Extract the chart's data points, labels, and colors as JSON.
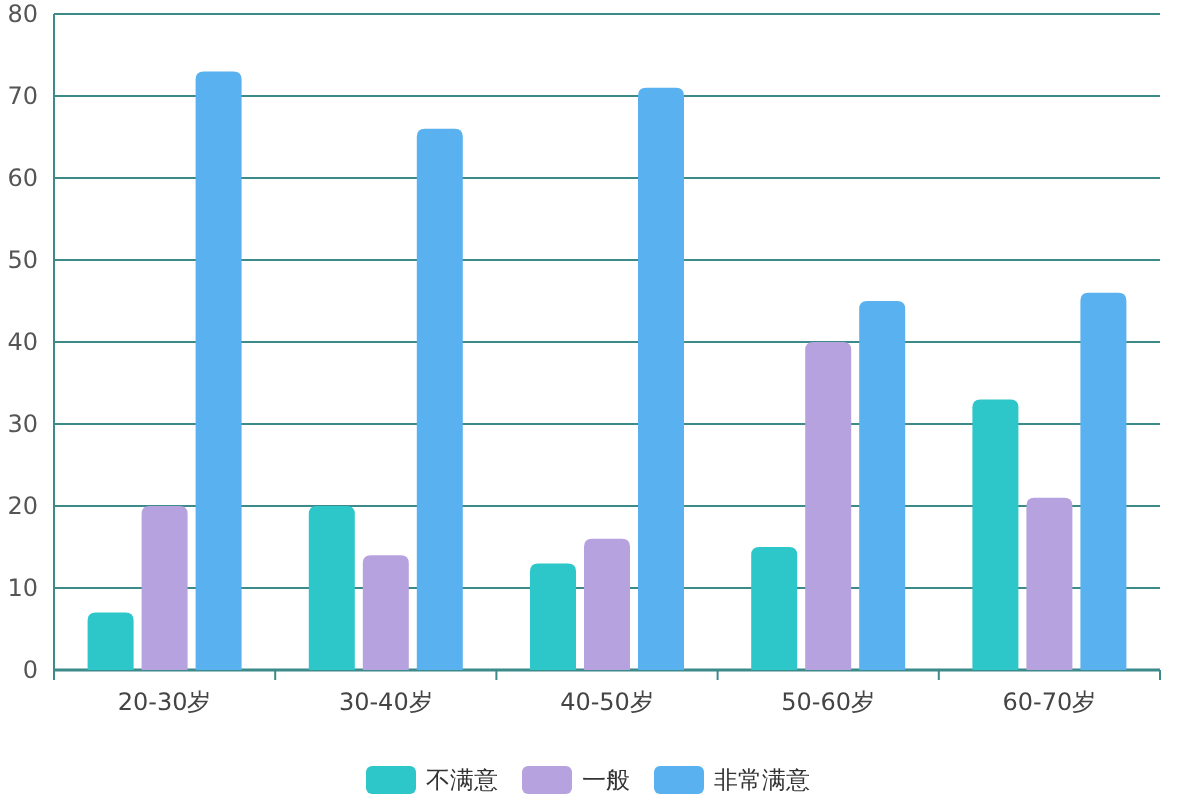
{
  "chart_data": {
    "type": "bar",
    "categories": [
      "20-30岁",
      "30-40岁",
      "40-50岁",
      "50-60岁",
      "60-70岁"
    ],
    "series": [
      {
        "name": "不满意",
        "color": "#2ec7c9",
        "values": [
          7,
          20,
          13,
          15,
          33
        ]
      },
      {
        "name": "一般",
        "color": "#b6a2de",
        "values": [
          20,
          14,
          16,
          40,
          21
        ]
      },
      {
        "name": "非常满意",
        "color": "#5ab1ef",
        "values": [
          73,
          66,
          71,
          45,
          46
        ]
      }
    ],
    "ylim": [
      0,
      80
    ],
    "yticks": [
      0,
      10,
      20,
      30,
      40,
      50,
      60,
      70,
      80
    ],
    "grid": "y",
    "legend": "bottom"
  }
}
